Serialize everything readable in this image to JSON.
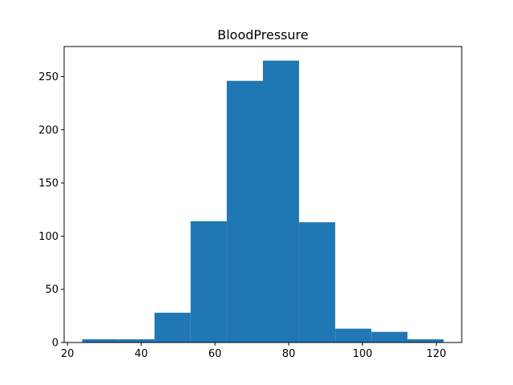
{
  "chart_data": {
    "type": "bar",
    "title": "BloodPressure",
    "xlabel": "",
    "ylabel": "",
    "bin_edges": [
      24,
      33.8,
      43.6,
      53.4,
      63.2,
      73.0,
      82.8,
      92.6,
      102.4,
      112.2,
      122
    ],
    "values": [
      3,
      3,
      28,
      114,
      246,
      265,
      113,
      13,
      10,
      3
    ],
    "xlim": [
      19.1,
      126.9
    ],
    "ylim": [
      0,
      278.25
    ],
    "xticks": [
      20,
      40,
      60,
      80,
      100,
      120
    ],
    "yticks": [
      0,
      50,
      100,
      150,
      200,
      250
    ],
    "bar_color": "#1f77b4",
    "grid": false,
    "legend": "none"
  }
}
